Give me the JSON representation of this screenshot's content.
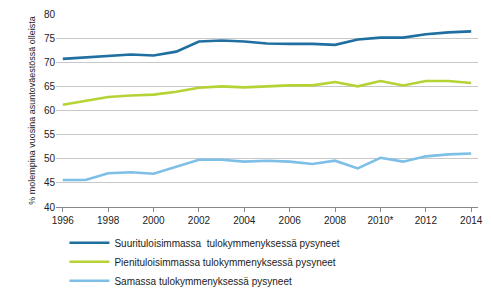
{
  "chart_data": {
    "type": "line",
    "y_label": "% molempina vuosina asuntoväestössä olleista",
    "categories": [
      "1996",
      null,
      "1998",
      null,
      "2000",
      null,
      "2002",
      null,
      "2004",
      null,
      "2006",
      null,
      "2008",
      null,
      "2010*",
      null,
      "2012",
      null,
      "2014"
    ],
    "series": [
      {
        "name": "Suurituloisimmassa  tulokymmenyksessä pysyneet",
        "color": "#1f6fa0",
        "values": [
          70.7,
          71.0,
          71.4,
          71.6,
          71.4,
          72.2,
          74.3,
          74.5,
          74.3,
          73.9,
          73.8,
          73.8,
          73.6,
          74.7,
          75.1,
          75.1,
          75.8,
          76.2,
          76.4
        ]
      },
      {
        "name": "Pienituloisimmassa tulokymmenyksessä pysyneet",
        "color": "#b5d334",
        "values": [
          61.2,
          62.0,
          62.8,
          63.1,
          63.3,
          63.9,
          64.7,
          65.0,
          64.8,
          65.0,
          65.2,
          65.2,
          65.9,
          65.0,
          66.1,
          65.2,
          66.1,
          66.1,
          65.7
        ]
      },
      {
        "name": "Samassa tulokymmenyksessä pysyneet",
        "color": "#7dbfe6",
        "values": [
          45.6,
          45.6,
          47.0,
          47.2,
          46.9,
          48.4,
          49.8,
          49.8,
          49.4,
          49.6,
          49.4,
          48.9,
          49.6,
          48.0,
          50.2,
          49.4,
          50.5,
          50.9,
          51.1
        ]
      }
    ],
    "ylim": [
      40,
      80
    ],
    "yticks": [
      40,
      45,
      50,
      55,
      60,
      65,
      70,
      75,
      80
    ],
    "grid": true,
    "legend": "bottom"
  }
}
